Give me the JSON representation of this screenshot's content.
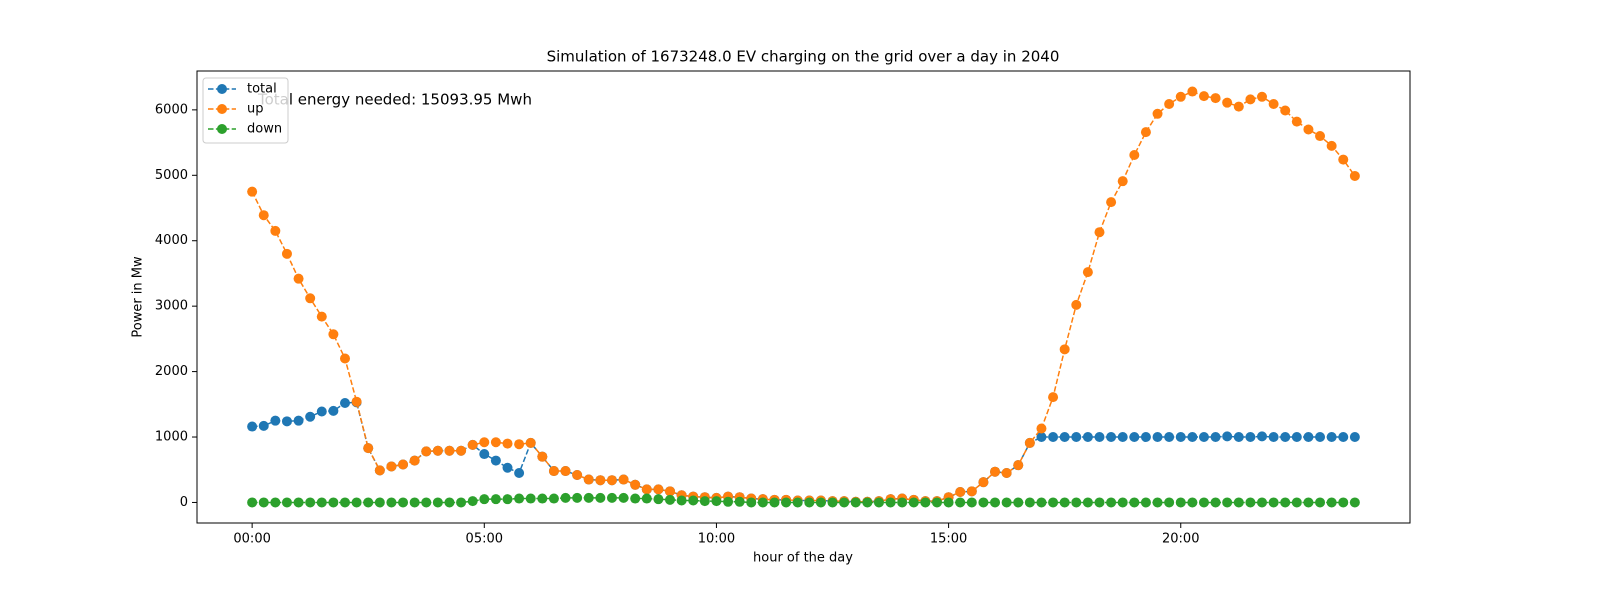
{
  "chart_data": {
    "type": "line",
    "title": "Simulation of 1673248.0 EV charging on the grid over a day in 2040",
    "xlabel": "hour of the day",
    "ylabel": "Power in Mw",
    "annotation": {
      "text": "Total energy needed: 15093.95 Mwh",
      "color": "#ff0000"
    },
    "legend": "upper left",
    "x": [
      0,
      0.25,
      0.5,
      0.75,
      1,
      1.25,
      1.5,
      1.75,
      2,
      2.25,
      2.5,
      2.75,
      3,
      3.25,
      3.5,
      3.75,
      4,
      4.25,
      4.5,
      4.75,
      5,
      5.25,
      5.5,
      5.75,
      6,
      6.25,
      6.5,
      6.75,
      7,
      7.25,
      7.5,
      7.75,
      8,
      8.25,
      8.5,
      8.75,
      9,
      9.25,
      9.5,
      9.75,
      10,
      10.25,
      10.5,
      10.75,
      11,
      11.25,
      11.5,
      11.75,
      12,
      12.25,
      12.5,
      12.75,
      13,
      13.25,
      13.5,
      13.75,
      14,
      14.25,
      14.5,
      14.75,
      15,
      15.25,
      15.5,
      15.75,
      16,
      16.25,
      16.5,
      16.75,
      17,
      17.25,
      17.5,
      17.75,
      18,
      18.25,
      18.5,
      18.75,
      19,
      19.25,
      19.5,
      19.75,
      20,
      20.25,
      20.5,
      20.75,
      21,
      21.25,
      21.5,
      21.75,
      22,
      22.25,
      22.5,
      22.75,
      23,
      23.25,
      23.5,
      23.75
    ],
    "series": [
      {
        "name": "total",
        "color": "#1f77b4",
        "values": [
          1160,
          1170,
          1250,
          1240,
          1250,
          1310,
          1390,
          1400,
          1520,
          1530,
          830,
          490,
          550,
          580,
          640,
          780,
          790,
          790,
          790,
          880,
          740,
          640,
          530,
          450,
          910,
          700,
          480,
          480,
          420,
          350,
          340,
          340,
          350,
          270,
          200,
          200,
          170,
          110,
          90,
          80,
          70,
          90,
          80,
          60,
          50,
          40,
          40,
          30,
          30,
          30,
          20,
          20,
          10,
          10,
          20,
          50,
          60,
          40,
          20,
          20,
          80,
          160,
          170,
          310,
          470,
          450,
          570,
          910,
          1000,
          1000,
          1000,
          1000,
          1000,
          1000,
          1000,
          1000,
          1000,
          1000,
          1000,
          1000,
          1000,
          1000,
          1000,
          1000,
          1010,
          1000,
          1000,
          1010,
          1000,
          1000,
          1000,
          1000,
          1000,
          1000,
          1000,
          1000
        ]
      },
      {
        "name": "up",
        "color": "#ff7f0e",
        "values": [
          4750,
          4390,
          4150,
          3800,
          3420,
          3120,
          2840,
          2570,
          2200,
          1540,
          830,
          490,
          550,
          580,
          640,
          780,
          790,
          790,
          790,
          880,
          920,
          920,
          900,
          890,
          910,
          700,
          480,
          480,
          420,
          350,
          340,
          340,
          350,
          270,
          200,
          200,
          170,
          110,
          90,
          80,
          70,
          90,
          80,
          60,
          50,
          40,
          40,
          30,
          30,
          30,
          20,
          20,
          10,
          10,
          20,
          50,
          60,
          40,
          20,
          20,
          80,
          160,
          170,
          310,
          470,
          450,
          570,
          910,
          1130,
          1610,
          2340,
          3020,
          3520,
          4130,
          4590,
          4910,
          5310,
          5660,
          5940,
          6090,
          6200,
          6280,
          6210,
          6180,
          6110,
          6050,
          6160,
          6200,
          6090,
          5990,
          5820,
          5700,
          5600,
          5450,
          5240,
          4990
        ]
      },
      {
        "name": "down",
        "color": "#2ca02c",
        "values": [
          0,
          0,
          0,
          0,
          0,
          0,
          0,
          0,
          0,
          0,
          0,
          0,
          0,
          0,
          0,
          0,
          0,
          0,
          0,
          20,
          50,
          50,
          50,
          60,
          60,
          60,
          60,
          70,
          70,
          70,
          70,
          70,
          70,
          60,
          60,
          50,
          40,
          30,
          30,
          20,
          20,
          10,
          10,
          0,
          0,
          0,
          0,
          0,
          0,
          0,
          0,
          0,
          0,
          0,
          0,
          0,
          0,
          0,
          0,
          0,
          0,
          0,
          0,
          0,
          0,
          0,
          0,
          0,
          0,
          0,
          0,
          0,
          0,
          0,
          0,
          0,
          0,
          0,
          0,
          0,
          0,
          0,
          0,
          0,
          0,
          0,
          0,
          0,
          0,
          0,
          0,
          0,
          0,
          0,
          0,
          0
        ]
      }
    ],
    "xlim": [
      -1.1875,
      24.9375
    ],
    "ylim": [
      -314,
      6594
    ],
    "xticks": [
      {
        "value": 0,
        "label": "00:00"
      },
      {
        "value": 5,
        "label": "05:00"
      },
      {
        "value": 10,
        "label": "10:00"
      },
      {
        "value": 15,
        "label": "15:00"
      },
      {
        "value": 20,
        "label": "20:00"
      }
    ],
    "yticks": [
      0,
      1000,
      2000,
      3000,
      4000,
      5000,
      6000
    ]
  }
}
